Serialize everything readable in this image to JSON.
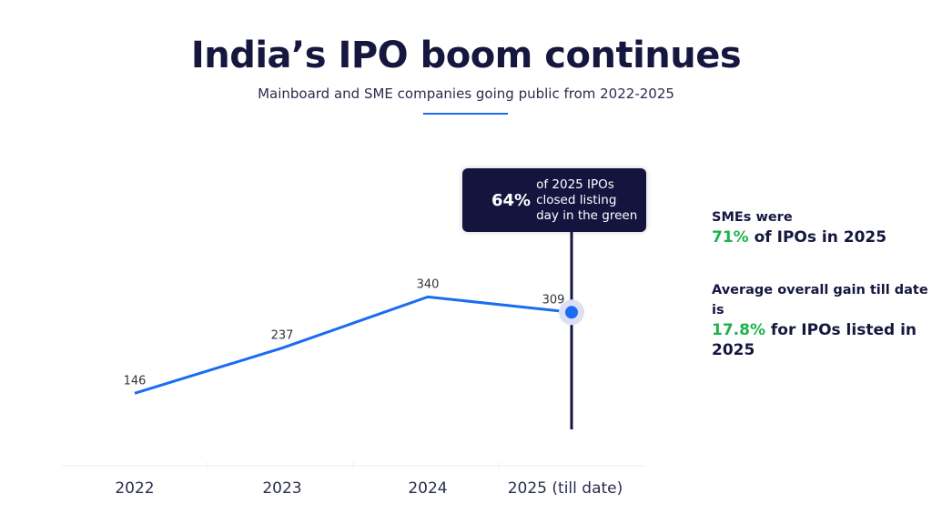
{
  "title": "India’s IPO boom continues",
  "subtitle": "Mainboard and SME companies going public from 2022-2025",
  "chart_data": {
    "type": "line",
    "categories": [
      "2022",
      "2023",
      "2024",
      "2025 (till date)"
    ],
    "values": [
      146,
      237,
      340,
      309
    ],
    "color": "#1a6cf0",
    "highlight_index": 3
  },
  "callout": {
    "pct": "64%",
    "text_lines": [
      "of 2025 IPOs",
      "closed listing",
      "day in the green"
    ]
  },
  "side": {
    "s1_line1": "SMEs were",
    "s1_pct": "71%",
    "s1_rest": " of IPOs in 2025",
    "s2_line1": "Average overall gain till date is",
    "s2_pct": "17.8%",
    "s2_rest": " for IPOs listed in",
    "s2_line3": "2025"
  }
}
